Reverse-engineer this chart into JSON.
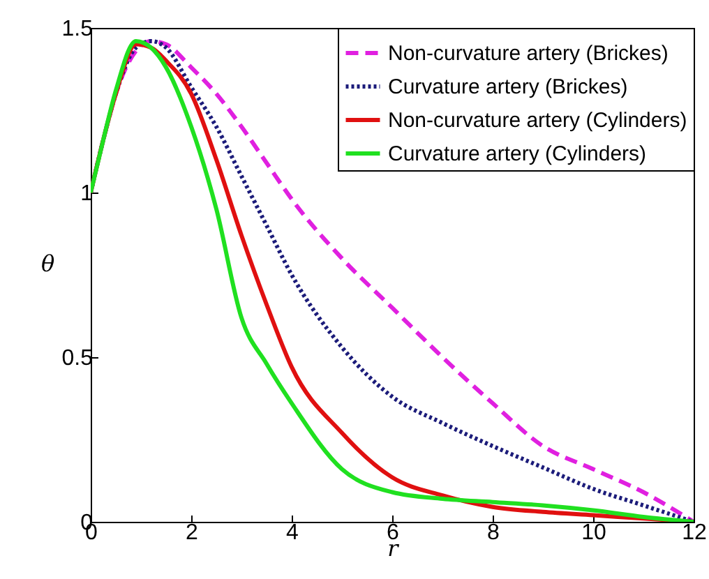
{
  "chart_data": {
    "type": "line",
    "xlabel": "r",
    "ylabel": "θ",
    "xlim": [
      0,
      12
    ],
    "ylim": [
      0,
      1.5
    ],
    "xticks": [
      0,
      2,
      4,
      6,
      8,
      10,
      12
    ],
    "yticks": [
      0,
      0.5,
      1,
      1.5
    ],
    "grid": false,
    "legend": "top right",
    "marker": "none",
    "x": [
      0,
      0.25,
      0.5,
      0.9,
      1.2,
      1.5,
      2,
      2.5,
      3,
      3.5,
      4,
      5,
      6,
      7,
      8,
      9,
      10,
      11,
      12
    ],
    "series": [
      {
        "name": "Non-curvature artery (Brickes)",
        "color": "#e020e0",
        "line_style": "dashed",
        "values": [
          1,
          1.16,
          1.3,
          1.43,
          1.46,
          1.45,
          1.38,
          1.3,
          1.2,
          1.09,
          0.98,
          0.8,
          0.65,
          0.5,
          0.36,
          0.23,
          0.16,
          0.09,
          0
        ]
      },
      {
        "name": "Curvature artery (Brickes)",
        "color": "#1c1c7a",
        "line_style": "dotted",
        "values": [
          1,
          1.16,
          1.3,
          1.44,
          1.46,
          1.44,
          1.32,
          1.2,
          1.05,
          0.9,
          0.75,
          0.53,
          0.38,
          0.3,
          0.23,
          0.165,
          0.1,
          0.05,
          0
        ]
      },
      {
        "name": "Non-curvature artery (Cylinders)",
        "color": "#e01010",
        "line_style": "solid",
        "values": [
          1,
          1.16,
          1.3,
          1.45,
          1.44,
          1.4,
          1.3,
          1.1,
          0.87,
          0.66,
          0.47,
          0.27,
          0.135,
          0.08,
          0.045,
          0.03,
          0.02,
          0.01,
          0
        ]
      },
      {
        "name": "Curvature artery (Cylinders)",
        "color": "#20e020",
        "line_style": "solid",
        "values": [
          1,
          1.16,
          1.31,
          1.46,
          1.44,
          1.38,
          1.2,
          0.95,
          0.62,
          0.48,
          0.36,
          0.16,
          0.09,
          0.07,
          0.06,
          0.05,
          0.035,
          0.015,
          0
        ]
      }
    ]
  }
}
